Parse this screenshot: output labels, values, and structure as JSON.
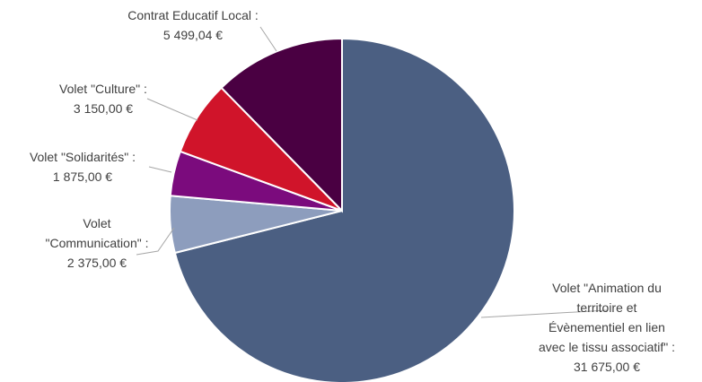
{
  "chart_data": {
    "type": "pie",
    "title": "",
    "legend": "none",
    "start_angle_deg": 0,
    "direction": "clockwise",
    "slices": [
      {
        "name": "Volet \"Animation du territoire et Évènementiel en lien avec le tissu associatif\"",
        "value": 31675.0,
        "color": "#4b5f82",
        "label_lines": [
          "Volet \"Animation du",
          "territoire et",
          "Évènementiel en lien",
          "avec le tissu associatif\" :",
          "31 675,00 €"
        ]
      },
      {
        "name": "Volet \"Communication\"",
        "value": 2375.0,
        "color": "#8d9dbd",
        "label_lines": [
          "Volet",
          "\"Communication\" :",
          "2 375,00 €"
        ]
      },
      {
        "name": "Volet \"Solidarités\"",
        "value": 1875.0,
        "color": "#7b0b7d",
        "label_lines": [
          "Volet \"Solidarités\" :",
          "1 875,00 €"
        ]
      },
      {
        "name": "Volet \"Culture\"",
        "value": 3150.0,
        "color": "#d0142a",
        "label_lines": [
          "Volet \"Culture\" :",
          "3 150,00 €"
        ]
      },
      {
        "name": "Contrat Educatif Local",
        "value": 5499.04,
        "color": "#4a0042",
        "label_lines": [
          "Contrat Educatif Local :",
          "5 499,04 €"
        ]
      }
    ]
  }
}
